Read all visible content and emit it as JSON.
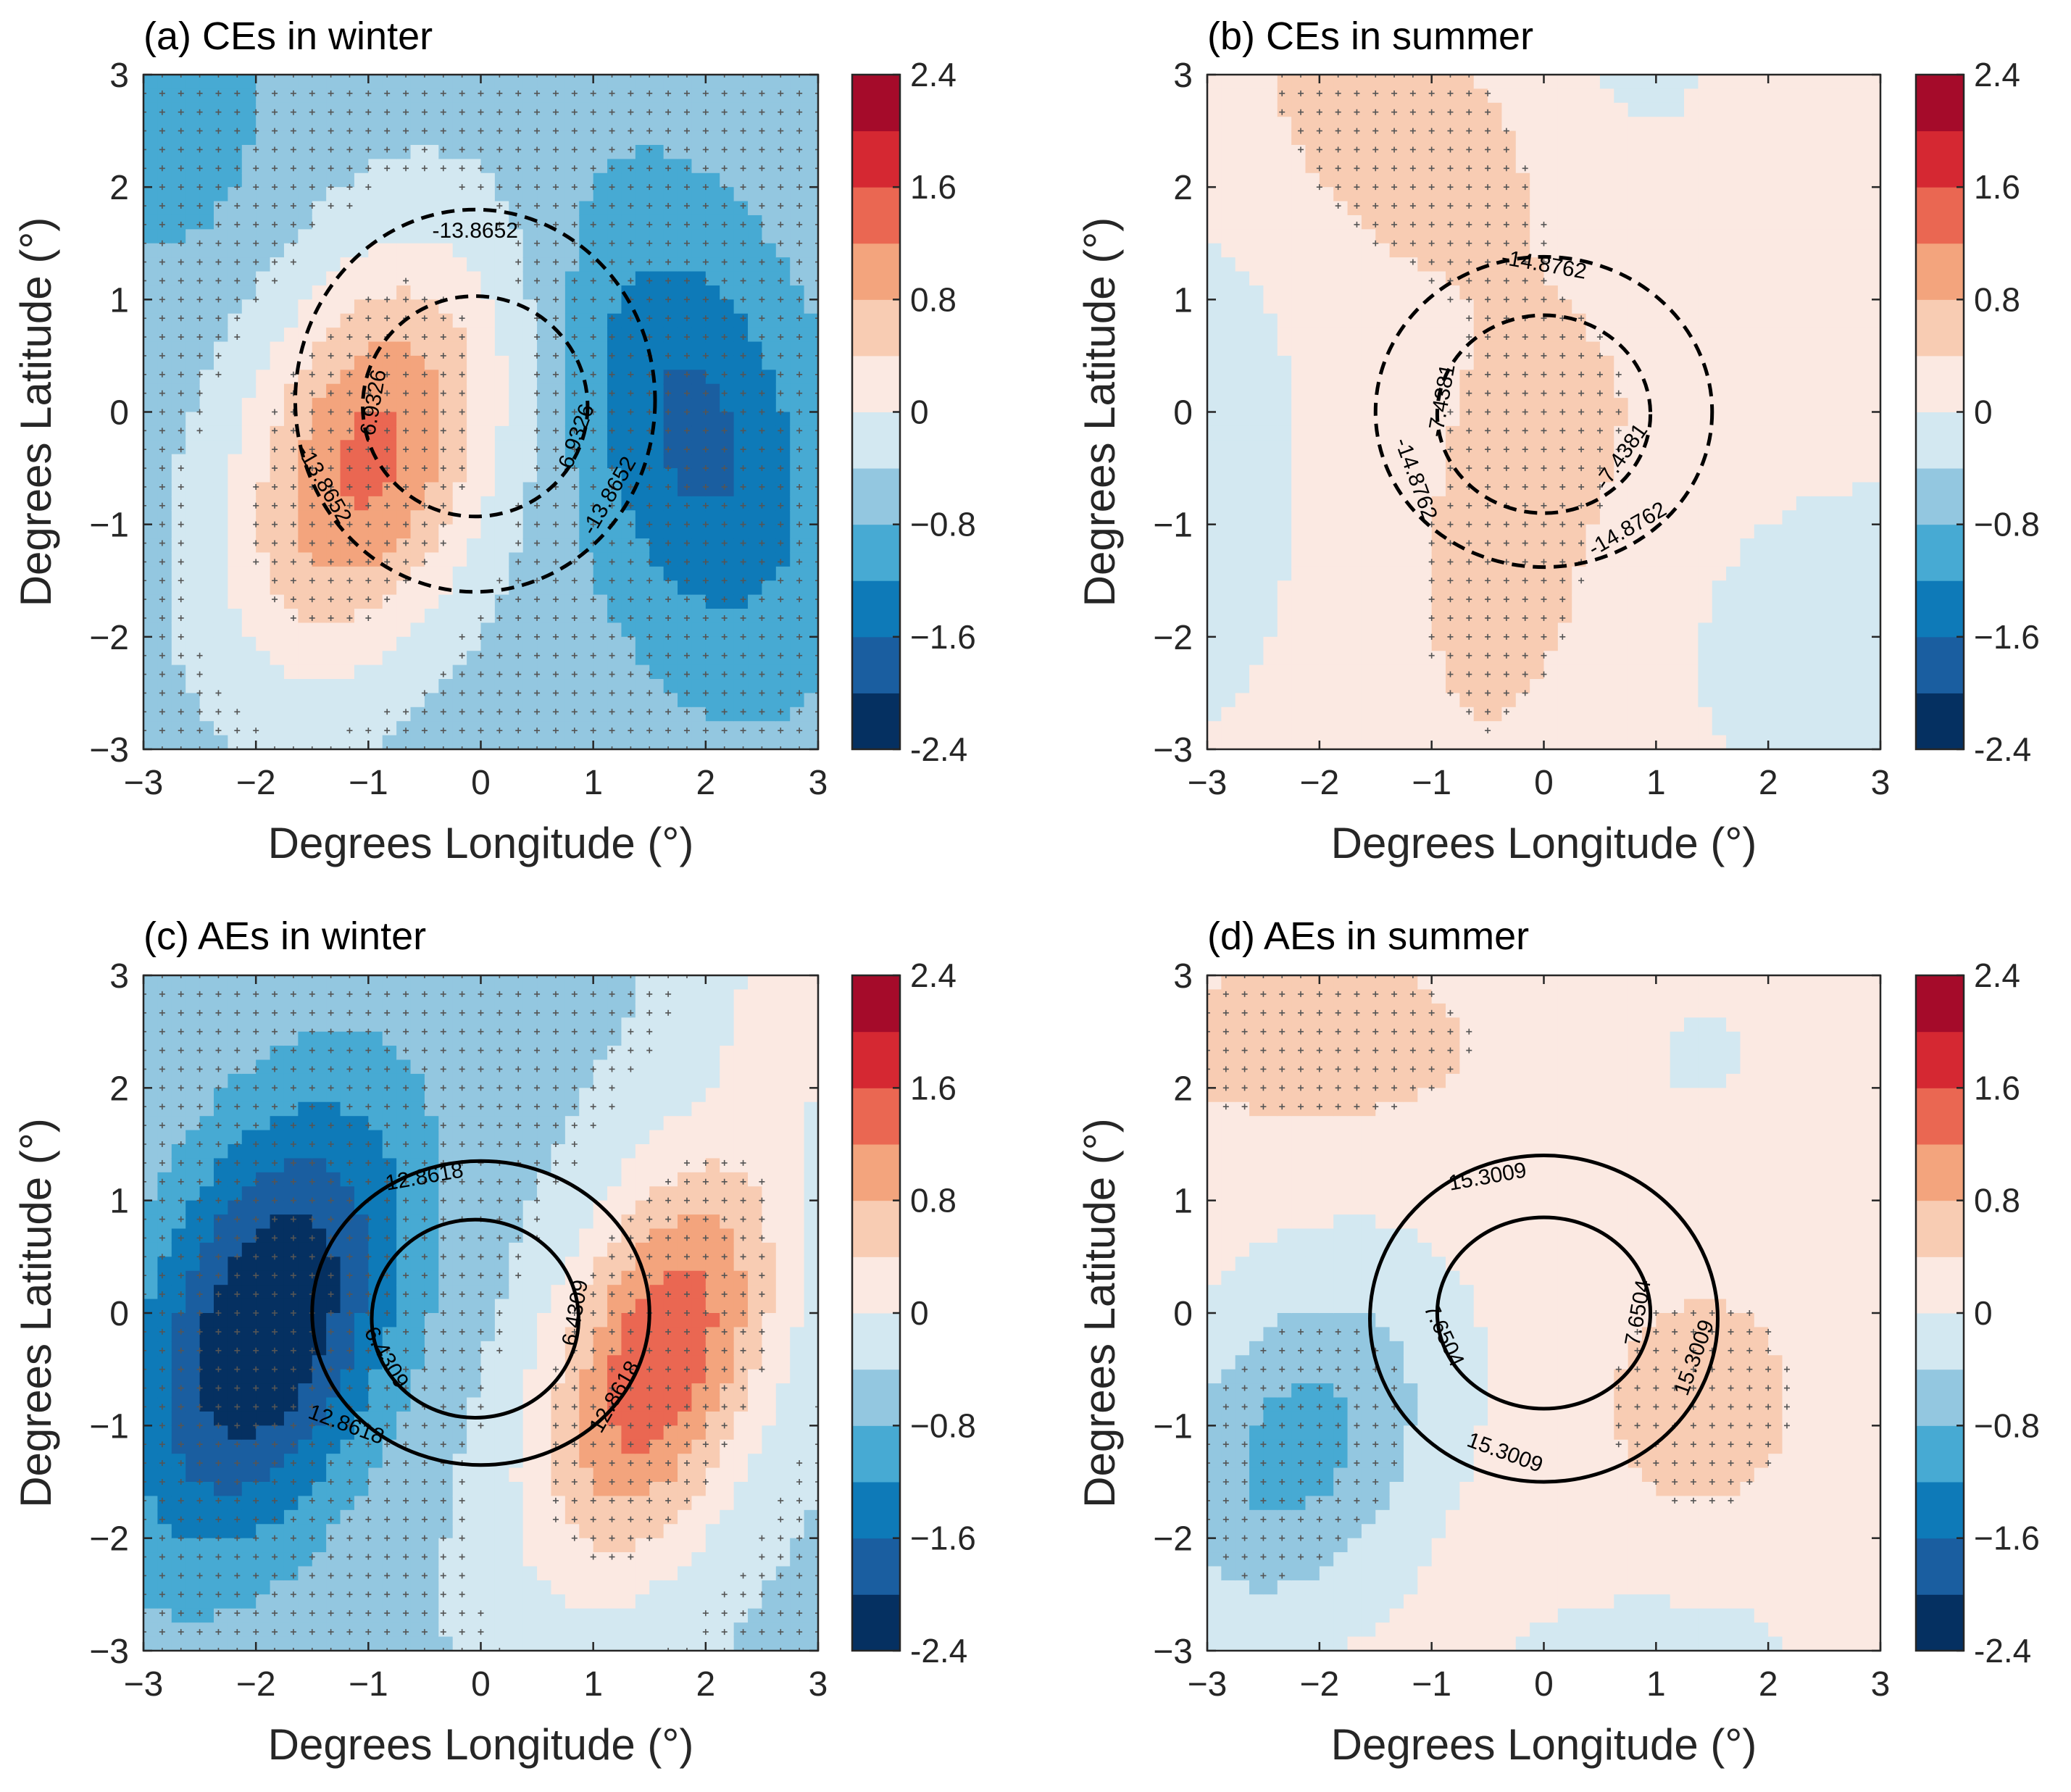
{
  "figure": {
    "description_free": true
  },
  "colorscale": {
    "levels": [
      -2.4,
      -2.0,
      -1.6,
      -1.2,
      -0.8,
      -0.4,
      0,
      0.4,
      0.8,
      1.2,
      1.6,
      2.0,
      2.4
    ],
    "colors": [
      "#053061",
      "#1a5ea0",
      "#0e7ab8",
      "#47aad3",
      "#93c7e0",
      "#d3e8f1",
      "#fbe9e2",
      "#f8ccb3",
      "#f3a47d",
      "#ea6752",
      "#d52832",
      "#a50b2a"
    ],
    "tick_labels": [
      "2.4",
      "1.6",
      "0.8",
      "0",
      "−0.8",
      "−1.6",
      "-2.4"
    ]
  },
  "chart_data": [
    {
      "type": "contour",
      "panel": "a",
      "title": "(a) CEs in winter",
      "xlabel": "Degrees Longitude (°)",
      "ylabel": "Degrees Latitude (°)",
      "xlim": [
        -3,
        3
      ],
      "ylim": [
        -3,
        3
      ],
      "xticks": [
        "−3",
        "−2",
        "−1",
        "0",
        "1",
        "2",
        "3"
      ],
      "yticks": [
        "−3",
        "−2",
        "−1",
        "0",
        "1",
        "2",
        "3"
      ],
      "field": {
        "base": -0.6,
        "blobs": [
          {
            "x": -1.0,
            "y": -0.4,
            "sx": 0.85,
            "sy": 1.3,
            "rho": 0.35,
            "a": 1.9
          },
          {
            "x": 1.9,
            "y": -0.2,
            "sx": 0.8,
            "sy": 1.4,
            "rho": -0.35,
            "a": -1.1
          },
          {
            "x": -2.9,
            "y": 2.6,
            "sx": 0.6,
            "sy": 0.8,
            "rho": 0,
            "a": -0.6
          }
        ]
      },
      "stipple": "dense",
      "contour_lines": {
        "style": "dashed",
        "items": [
          {
            "value": "-13.8652",
            "cx": -0.05,
            "cy": 0.1,
            "rx": 1.6,
            "ry": 1.7
          },
          {
            "value": "-6.9326",
            "cx": -0.05,
            "cy": 0.05,
            "rx": 1.0,
            "ry": 0.98
          }
        ],
        "labels": [
          {
            "text": "-13.8652",
            "x": -0.05,
            "y": 1.6,
            "rot": 0
          },
          {
            "text": "-13.8652",
            "x": -1.4,
            "y": -0.65,
            "rot": 60
          },
          {
            "text": "-13.8652",
            "x": 1.15,
            "y": -0.75,
            "rot": -60
          },
          {
            "text": "-6.9326",
            "x": -0.95,
            "y": 0.05,
            "rot": -80
          },
          {
            "text": "-6.9326",
            "x": 0.85,
            "y": -0.25,
            "rot": -70
          }
        ]
      }
    },
    {
      "type": "contour",
      "panel": "b",
      "title": "(b) CEs in summer",
      "xlabel": "Degrees Longitude (°)",
      "ylabel": "Degrees Latitude (°)",
      "xlim": [
        -3,
        3
      ],
      "ylim": [
        -3,
        3
      ],
      "xticks": [
        "−3",
        "−2",
        "−1",
        "0",
        "1",
        "2",
        "3"
      ],
      "yticks": [
        "−3",
        "−2",
        "−1",
        "0",
        "1",
        "2",
        "3"
      ],
      "field": {
        "base": 0.2,
        "blobs": [
          {
            "x": -1.4,
            "y": 2.5,
            "sx": 1.0,
            "sy": 1.0,
            "rho": -0.4,
            "a": 0.4
          },
          {
            "x": -0.3,
            "y": -1.3,
            "sx": 0.7,
            "sy": 1.4,
            "rho": 0.2,
            "a": 0.35
          },
          {
            "x": 0.2,
            "y": 0.0,
            "sx": 0.6,
            "sy": 0.6,
            "rho": 0,
            "a": 0.15
          },
          {
            "x": -3.2,
            "y": -0.5,
            "sx": 0.8,
            "sy": 1.8,
            "rho": 0,
            "a": -0.45
          },
          {
            "x": 3.0,
            "y": -2.2,
            "sx": 1.3,
            "sy": 1.2,
            "rho": 0,
            "a": -0.45
          },
          {
            "x": 0.9,
            "y": 3.0,
            "sx": 0.5,
            "sy": 0.5,
            "rho": 0,
            "a": -0.3
          }
        ]
      },
      "stipple": "sparse",
      "contour_lines": {
        "style": "dashed",
        "items": [
          {
            "value": "-14.8762",
            "cx": 0.0,
            "cy": 0.0,
            "rx": 1.5,
            "ry": 1.38
          },
          {
            "value": "-7.4381",
            "cx": 0.0,
            "cy": -0.02,
            "rx": 0.95,
            "ry": 0.88
          }
        ],
        "labels": [
          {
            "text": "-14.8762",
            "x": 0.0,
            "y": 1.3,
            "rot": 10
          },
          {
            "text": "-14.8762",
            "x": -1.15,
            "y": -0.6,
            "rot": 70
          },
          {
            "text": "-14.8762",
            "x": 0.75,
            "y": -1.05,
            "rot": -30
          },
          {
            "text": "-7.4381",
            "x": -0.9,
            "y": 0.1,
            "rot": -80
          },
          {
            "text": "-7.4381",
            "x": 0.7,
            "y": -0.4,
            "rot": -55
          }
        ]
      }
    },
    {
      "type": "contour",
      "panel": "c",
      "title": "(c) AEs in winter",
      "xlabel": "Degrees Longitude (°)",
      "ylabel": "Degrees Latitude (°)",
      "xlim": [
        -3,
        3
      ],
      "ylim": [
        -3,
        3
      ],
      "xticks": [
        "−3",
        "−2",
        "−1",
        "0",
        "1",
        "2",
        "3"
      ],
      "yticks": [
        "−3",
        "−2",
        "−1",
        "0",
        "1",
        "2",
        "3"
      ],
      "field": {
        "base": -0.45,
        "blobs": [
          {
            "x": -1.9,
            "y": -0.1,
            "sx": 0.85,
            "sy": 1.4,
            "rho": 0.4,
            "a": -2.0
          },
          {
            "x": 1.6,
            "y": -0.4,
            "sx": 0.75,
            "sy": 1.3,
            "rho": 0.45,
            "a": 2.0
          },
          {
            "x": 2.9,
            "y": 2.7,
            "sx": 0.6,
            "sy": 0.6,
            "rho": 0,
            "a": 0.6
          }
        ]
      },
      "stipple": "dense",
      "contour_lines": {
        "style": "solid",
        "items": [
          {
            "value": "12.8618",
            "cx": 0.0,
            "cy": 0.0,
            "rx": 1.5,
            "ry": 1.35
          },
          {
            "value": "6.4309",
            "cx": -0.05,
            "cy": -0.05,
            "rx": 0.92,
            "ry": 0.88
          }
        ],
        "labels": [
          {
            "text": "12.8618",
            "x": -0.5,
            "y": 1.2,
            "rot": -10
          },
          {
            "text": "12.8618",
            "x": -1.2,
            "y": -1.0,
            "rot": 20
          },
          {
            "text": "12.8618",
            "x": 1.2,
            "y": -0.75,
            "rot": -60
          },
          {
            "text": "6.4309",
            "x": -0.85,
            "y": -0.4,
            "rot": 60
          },
          {
            "text": "6.4309",
            "x": 0.85,
            "y": 0.0,
            "rot": -80
          }
        ]
      }
    },
    {
      "type": "contour",
      "panel": "d",
      "title": "(d) AEs in summer",
      "xlabel": "Degrees Longitude (°)",
      "ylabel": "Degrees Latitude (°)",
      "xlim": [
        -3,
        3
      ],
      "ylim": [
        -3,
        3
      ],
      "xticks": [
        "−3",
        "−2",
        "−1",
        "0",
        "1",
        "2",
        "3"
      ],
      "yticks": [
        "−3",
        "−2",
        "−1",
        "0",
        "1",
        "2",
        "3"
      ],
      "field": {
        "base": 0.2,
        "blobs": [
          {
            "x": -2.2,
            "y": -1.2,
            "sx": 0.9,
            "sy": 1.1,
            "rho": 0.3,
            "a": -1.15
          },
          {
            "x": 1.4,
            "y": -0.8,
            "sx": 0.6,
            "sy": 0.7,
            "rho": 0,
            "a": 0.45
          },
          {
            "x": -2.0,
            "y": 2.4,
            "sx": 1.1,
            "sy": 0.6,
            "rho": 0,
            "a": 0.4
          },
          {
            "x": 1.4,
            "y": 2.3,
            "sx": 0.25,
            "sy": 0.25,
            "rho": 0,
            "a": -0.5
          },
          {
            "x": 1.0,
            "y": -3.0,
            "sx": 1.0,
            "sy": 0.4,
            "rho": 0,
            "a": -0.4
          }
        ]
      },
      "stipple": "mixed",
      "contour_lines": {
        "style": "solid",
        "items": [
          {
            "value": "15.3009",
            "cx": 0.0,
            "cy": -0.05,
            "rx": 1.55,
            "ry": 1.45
          },
          {
            "value": "7.6504",
            "cx": 0.0,
            "cy": 0.0,
            "rx": 0.95,
            "ry": 0.85
          }
        ],
        "labels": [
          {
            "text": "15.3009",
            "x": -0.5,
            "y": 1.2,
            "rot": -10
          },
          {
            "text": "15.3009",
            "x": -0.35,
            "y": -1.25,
            "rot": 20
          },
          {
            "text": "15.3009",
            "x": 1.35,
            "y": -0.4,
            "rot": -70
          },
          {
            "text": "7.6504",
            "x": -0.9,
            "y": -0.2,
            "rot": 65
          },
          {
            "text": "7.6504",
            "x": 0.85,
            "y": 0.0,
            "rot": -80
          }
        ]
      }
    }
  ]
}
